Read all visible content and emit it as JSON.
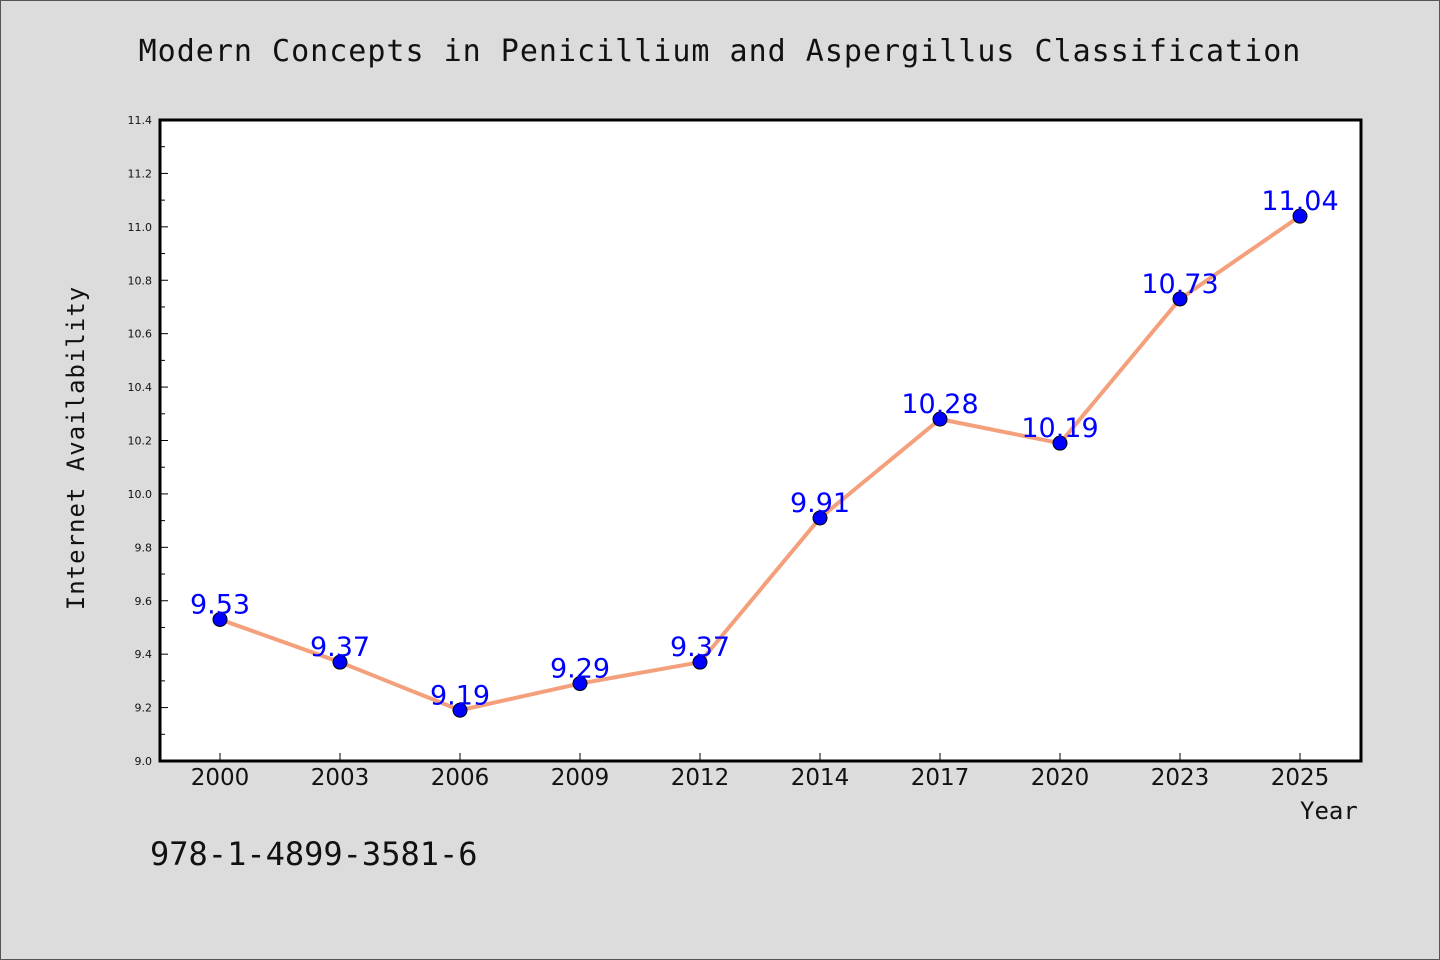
{
  "chart_data": {
    "type": "line",
    "title": "Modern Concepts in Penicillium and Aspergillus Classification",
    "xlabel": "Year",
    "ylabel": "Internet Availability",
    "categories": [
      "2000",
      "2003",
      "2006",
      "2009",
      "2012",
      "2014",
      "2017",
      "2020",
      "2023",
      "2025"
    ],
    "series": [
      {
        "values": [
          9.53,
          9.37,
          9.19,
          9.29,
          9.37,
          9.91,
          10.28,
          10.19,
          10.73,
          11.04
        ],
        "data_labels": [
          "9.53",
          "9.37",
          "9.19",
          "9.29",
          "9.37",
          "9.91",
          "10.28",
          "10.19",
          "10.73",
          "11.04"
        ]
      }
    ],
    "ylim": [
      9.0,
      11.4
    ],
    "yticks": [
      "9.0",
      "9.2",
      "9.4",
      "9.6",
      "9.8",
      "10.0",
      "10.2",
      "10.4",
      "10.6",
      "10.8",
      "11.0",
      "11.2",
      "11.4"
    ],
    "grid": false,
    "colors": {
      "line": "#f4a07c",
      "marker": "#0000ff",
      "marker_edge": "#000000",
      "data_label": "#0000ff",
      "background": "#dcdcdc",
      "plot_area": "#ffffff"
    }
  },
  "footer_text": "978-1-4899-3581-6"
}
